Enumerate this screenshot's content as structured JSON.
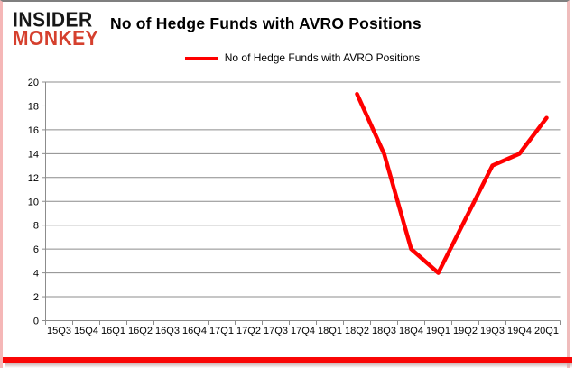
{
  "logo": {
    "line1": "INSIDER",
    "line2": "MONKEY"
  },
  "header": {
    "title": "No of Hedge Funds with AVRO Positions"
  },
  "legend": {
    "label": "No of Hedge Funds with AVRO Positions"
  },
  "colors": {
    "line": "#ff0000",
    "grid": "#8c8c8c",
    "axis": "#8c8c8c",
    "text": "#000000",
    "logo_black": "#171717",
    "logo_red": "#d5402e",
    "border_top": "#7f7f7f",
    "border_sides": "#f5b7b7",
    "bottom_bar": "#fa0606"
  },
  "chart_data": {
    "type": "line",
    "title": "No of Hedge Funds with AVRO Positions",
    "categories": [
      "15Q3",
      "15Q4",
      "16Q1",
      "16Q2",
      "16Q3",
      "16Q4",
      "17Q1",
      "17Q2",
      "17Q3",
      "17Q4",
      "18Q1",
      "18Q2",
      "18Q3",
      "18Q4",
      "19Q1",
      "19Q2",
      "19Q3",
      "19Q4",
      "20Q1"
    ],
    "series": [
      {
        "name": "No of Hedge Funds with AVRO Positions",
        "color": "#ff0000",
        "values": [
          null,
          null,
          null,
          null,
          null,
          null,
          null,
          null,
          null,
          null,
          null,
          19,
          14,
          6,
          4,
          8.5,
          13,
          14,
          17
        ]
      }
    ],
    "xlabel": "",
    "ylabel": "",
    "ylim": [
      0,
      20
    ],
    "ytick_step": 2,
    "grid": true,
    "legend_position": "top"
  }
}
